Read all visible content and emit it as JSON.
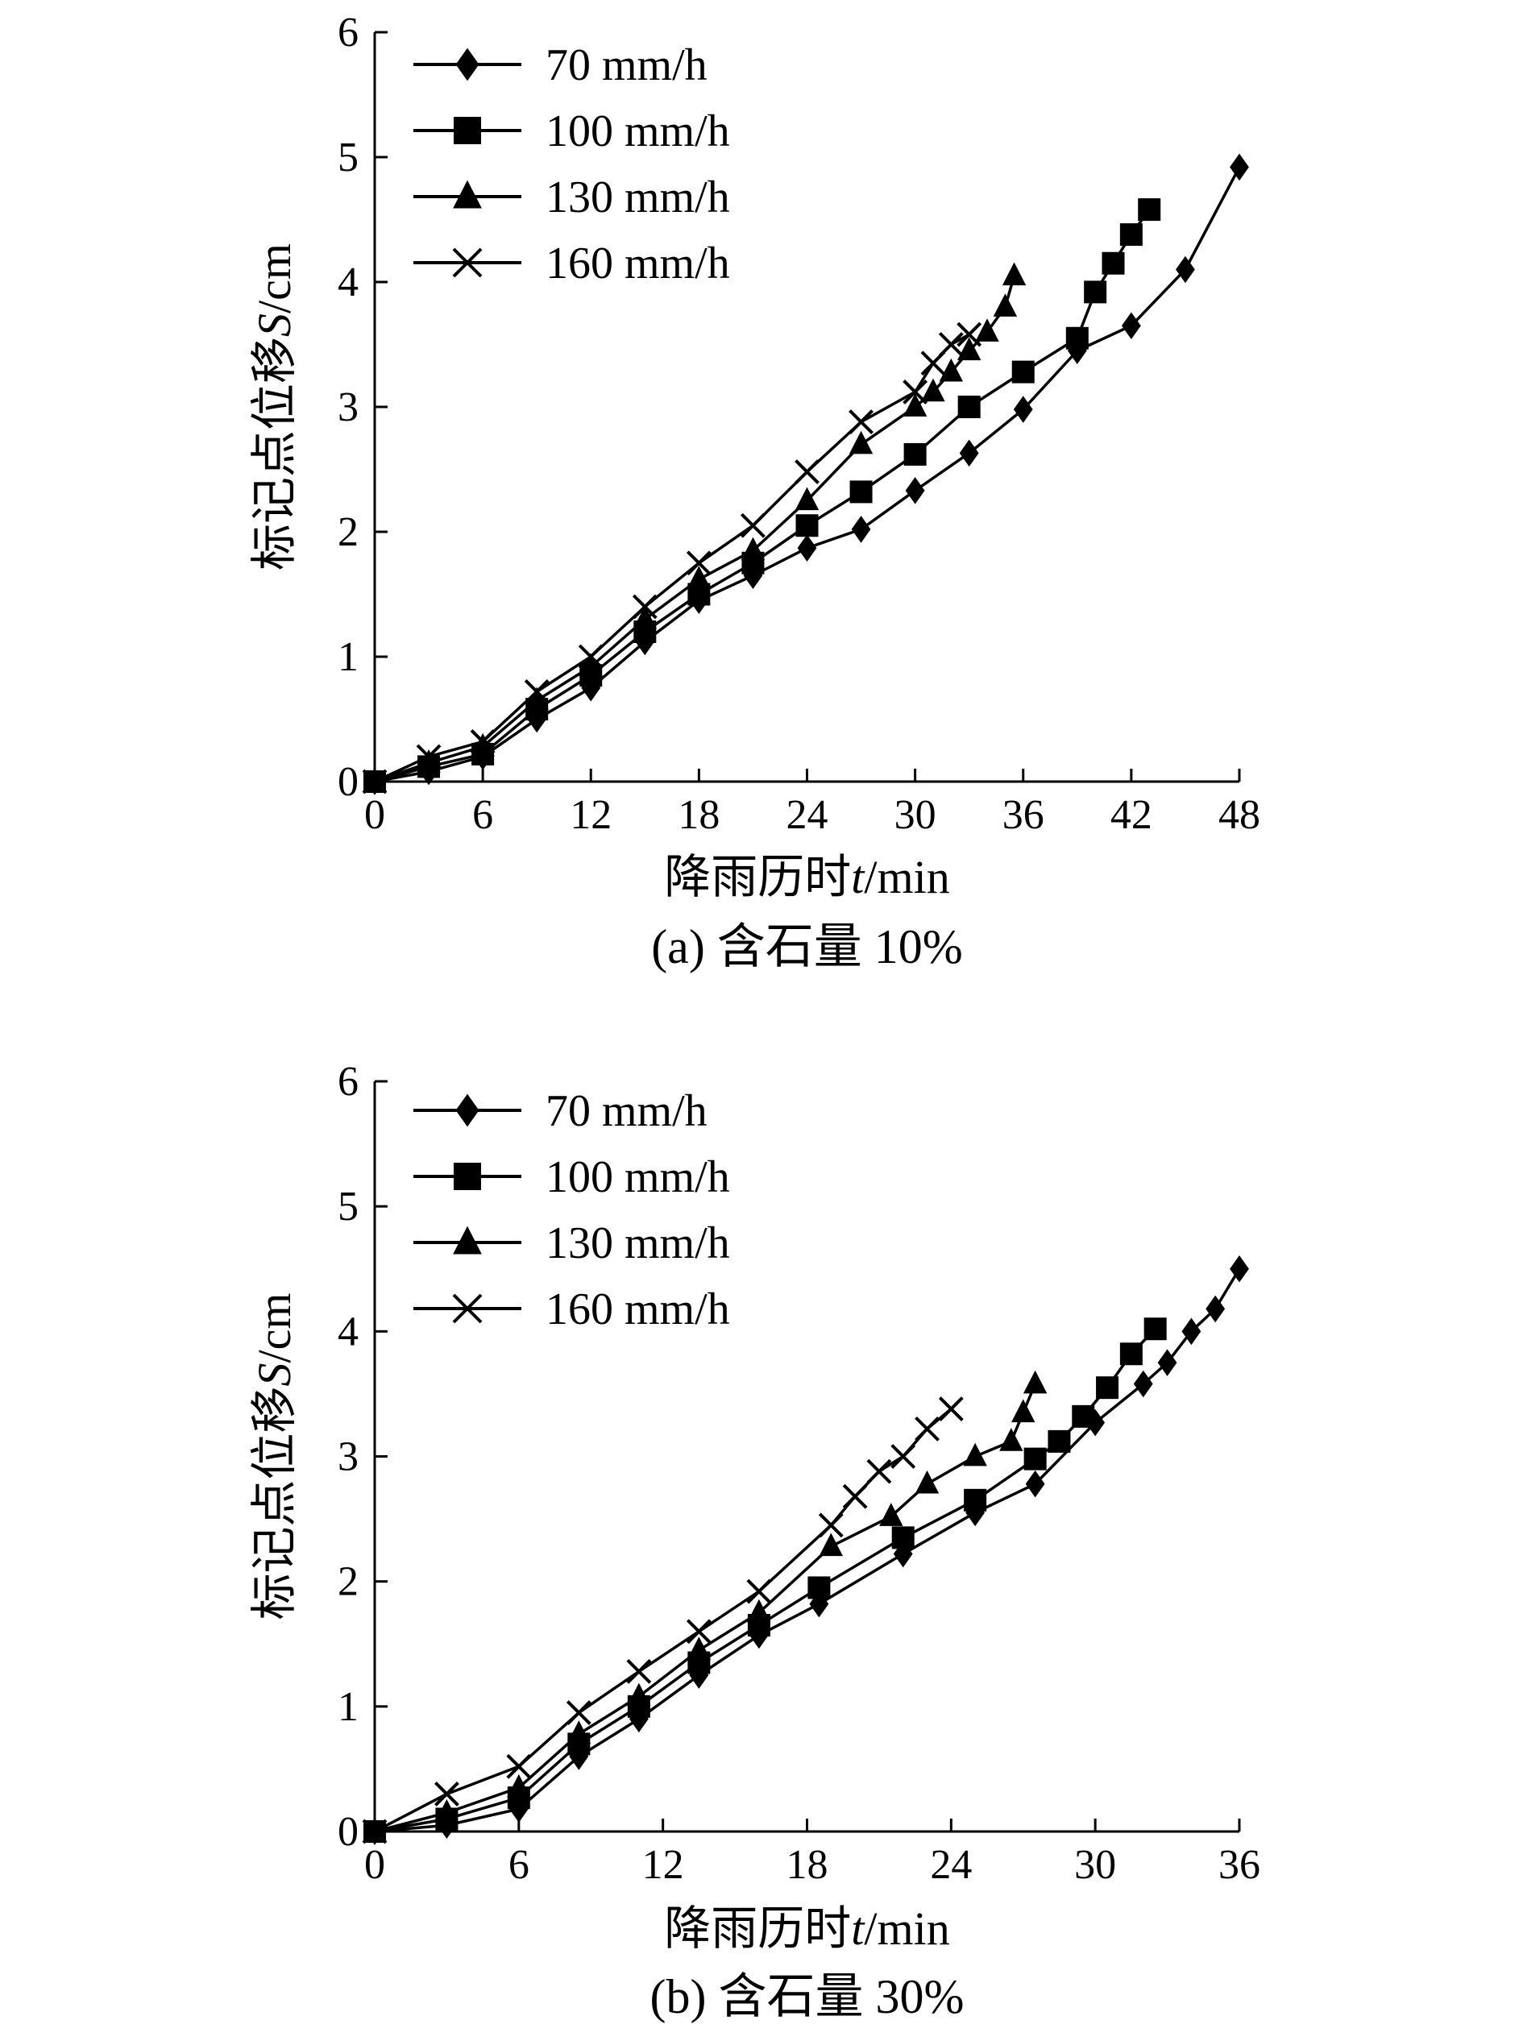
{
  "chart_data": [
    {
      "type": "line",
      "caption": "(a) 含石量 10%",
      "xlabel_prefix": "降雨历时",
      "xlabel_var": "t",
      "xlabel_unit": "/min",
      "ylabel_prefix": "标记点位移",
      "ylabel_var": "S",
      "ylabel_unit": "/cm",
      "xlim": [
        0,
        48
      ],
      "ylim": [
        0,
        6
      ],
      "xticks": [
        "0",
        "6",
        "12",
        "18",
        "24",
        "30",
        "36",
        "42",
        "48"
      ],
      "yticks": [
        "0",
        "1",
        "2",
        "3",
        "4",
        "5",
        "6"
      ],
      "legend_position": "top-left",
      "series": [
        {
          "name": "70 mm/h",
          "marker": "diamond",
          "x": [
            0,
            3,
            6,
            9,
            12,
            15,
            18,
            21,
            24,
            27,
            30,
            33,
            36,
            39,
            42,
            45,
            48
          ],
          "y": [
            0,
            0.08,
            0.2,
            0.5,
            0.75,
            1.12,
            1.45,
            1.65,
            1.87,
            2.02,
            2.33,
            2.63,
            2.98,
            3.45,
            3.65,
            4.1,
            4.92
          ]
        },
        {
          "name": "100 mm/h",
          "marker": "square",
          "x": [
            0,
            3,
            6,
            9,
            12,
            15,
            18,
            21,
            24,
            27,
            30,
            33,
            36,
            39,
            40,
            41,
            42,
            43
          ],
          "y": [
            0,
            0.12,
            0.22,
            0.58,
            0.85,
            1.2,
            1.5,
            1.75,
            2.05,
            2.32,
            2.62,
            3.0,
            3.28,
            3.55,
            3.92,
            4.15,
            4.38,
            4.58
          ]
        },
        {
          "name": "130 mm/h",
          "marker": "triangle",
          "x": [
            0,
            3,
            6,
            9,
            12,
            15,
            18,
            21,
            24,
            27,
            30,
            31,
            32,
            33,
            34,
            35,
            35.5
          ],
          "y": [
            0,
            0.15,
            0.28,
            0.65,
            0.92,
            1.3,
            1.62,
            1.85,
            2.25,
            2.7,
            3.0,
            3.12,
            3.28,
            3.45,
            3.6,
            3.8,
            4.05
          ]
        },
        {
          "name": "160 mm/h",
          "marker": "cross",
          "x": [
            0,
            3,
            6,
            9,
            12,
            15,
            18,
            21,
            24,
            27,
            30,
            31,
            32,
            33
          ],
          "y": [
            0,
            0.2,
            0.32,
            0.72,
            1.0,
            1.4,
            1.75,
            2.05,
            2.48,
            2.88,
            3.12,
            3.35,
            3.5,
            3.58
          ]
        }
      ]
    },
    {
      "type": "line",
      "caption": "(b) 含石量 30%",
      "xlabel_prefix": "降雨历时",
      "xlabel_var": "t",
      "xlabel_unit": "/min",
      "ylabel_prefix": "标记点位移",
      "ylabel_var": "S",
      "ylabel_unit": "/cm",
      "xlim": [
        0,
        36
      ],
      "ylim": [
        0,
        6
      ],
      "xticks": [
        "0",
        "6",
        "12",
        "18",
        "24",
        "30",
        "36"
      ],
      "yticks": [
        "0",
        "1",
        "2",
        "3",
        "4",
        "5",
        "6"
      ],
      "legend_position": "top-left",
      "series": [
        {
          "name": "70 mm/h",
          "marker": "diamond",
          "x": [
            0,
            3,
            6,
            8.5,
            11,
            13.5,
            16,
            18.5,
            22,
            25,
            27.5,
            30,
            32,
            33,
            34,
            35,
            36
          ],
          "y": [
            0,
            0.05,
            0.18,
            0.6,
            0.9,
            1.25,
            1.57,
            1.82,
            2.22,
            2.55,
            2.78,
            3.27,
            3.58,
            3.75,
            4.0,
            4.18,
            4.5
          ]
        },
        {
          "name": "100 mm/h",
          "marker": "square",
          "x": [
            0,
            3,
            6,
            8.5,
            11,
            13.5,
            16,
            18.5,
            22,
            25,
            27.5,
            28.5,
            29.5,
            30.5,
            31.5,
            32.5
          ],
          "y": [
            0,
            0.1,
            0.27,
            0.7,
            1.0,
            1.35,
            1.65,
            1.95,
            2.35,
            2.65,
            2.98,
            3.12,
            3.32,
            3.55,
            3.82,
            4.02
          ]
        },
        {
          "name": "130 mm/h",
          "marker": "triangle",
          "x": [
            0,
            3,
            6,
            8.5,
            11,
            13.5,
            16,
            19,
            21.5,
            23,
            25,
            26.5,
            27,
            27.5
          ],
          "y": [
            0,
            0.15,
            0.35,
            0.78,
            1.08,
            1.45,
            1.75,
            2.28,
            2.52,
            2.78,
            3.0,
            3.12,
            3.35,
            3.58
          ]
        },
        {
          "name": "160 mm/h",
          "marker": "cross",
          "x": [
            0,
            3,
            6,
            8.5,
            11,
            13.5,
            16,
            19,
            20,
            21,
            22,
            23,
            24
          ],
          "y": [
            0,
            0.3,
            0.52,
            0.95,
            1.28,
            1.6,
            1.92,
            2.45,
            2.68,
            2.88,
            3.0,
            3.22,
            3.38
          ]
        }
      ]
    }
  ]
}
